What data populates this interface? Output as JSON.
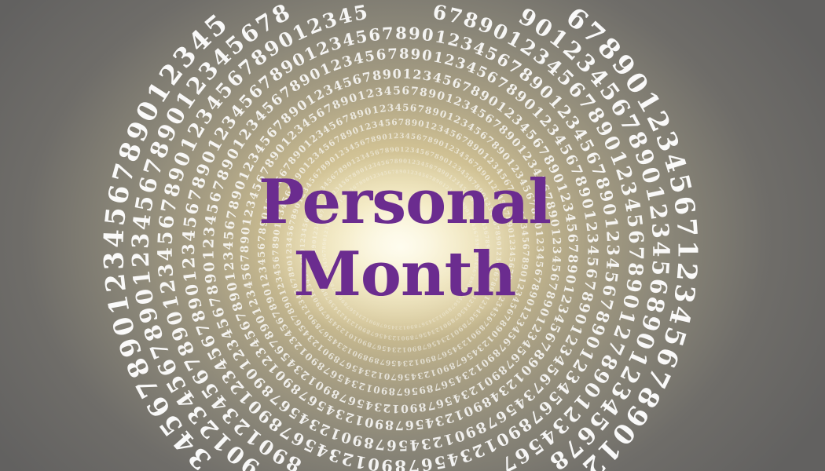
{
  "image": {
    "title": "Personal Month",
    "title_lines": [
      "Personal",
      "Month"
    ],
    "digit_sequence": "1234567890",
    "colors": {
      "title": "#6b2c8f",
      "digits": "#ffffff",
      "center_glow": "#f8f3de",
      "background_edge": "#626160"
    }
  }
}
